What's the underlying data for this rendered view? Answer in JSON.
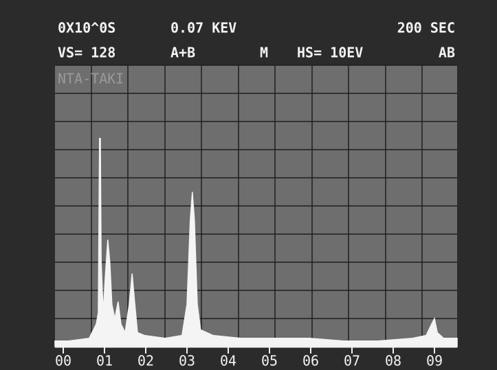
{
  "chart_data": {
    "type": "spectrum",
    "header": [
      "0X10^0S",
      "0.07 KEV",
      "200 SEC",
      "VS= 128",
      "A+B",
      "M",
      "HS= 10EV",
      "AB"
    ],
    "sample_label": "NTA-TAKI",
    "series": [
      {
        "color": "#f4f4f4",
        "x": [
          -0.2,
          0.13,
          0.63,
          0.8,
          0.85,
          0.88,
          0.9,
          0.92,
          0.97,
          1.02,
          1.08,
          1.13,
          1.18,
          1.25,
          1.33,
          1.4,
          1.5,
          1.6,
          1.67,
          1.73,
          1.8,
          1.97,
          2.47,
          2.88,
          3.0,
          3.08,
          3.13,
          3.18,
          3.25,
          3.33,
          3.63,
          4.3,
          5.13,
          5.97,
          6.8,
          7.63,
          8.47,
          8.8,
          8.93,
          9.0,
          9.07,
          9.22,
          9.55
        ],
        "values": [
          2,
          2,
          3,
          8,
          12,
          74,
          74,
          30,
          12,
          25,
          38,
          30,
          15,
          10,
          16,
          8,
          5,
          15,
          26,
          16,
          5,
          4,
          3,
          4,
          15,
          45,
          55,
          45,
          15,
          6,
          4,
          3,
          3,
          3,
          2,
          2,
          3,
          4,
          8,
          10,
          5,
          3,
          3
        ]
      }
    ],
    "xlim": [
      -0.2,
      9.55
    ],
    "ylim": [
      0,
      100
    ],
    "xticks": [
      {
        "value": 0,
        "label": "00"
      },
      {
        "value": 1,
        "label": "01"
      },
      {
        "value": 2,
        "label": "02"
      },
      {
        "value": 3,
        "label": "03"
      },
      {
        "value": 4,
        "label": "04"
      },
      {
        "value": 5,
        "label": "05"
      },
      {
        "value": 6,
        "label": "06"
      },
      {
        "value": 7,
        "label": "07"
      },
      {
        "value": 8,
        "label": "08"
      },
      {
        "value": 9,
        "label": "09"
      }
    ]
  }
}
